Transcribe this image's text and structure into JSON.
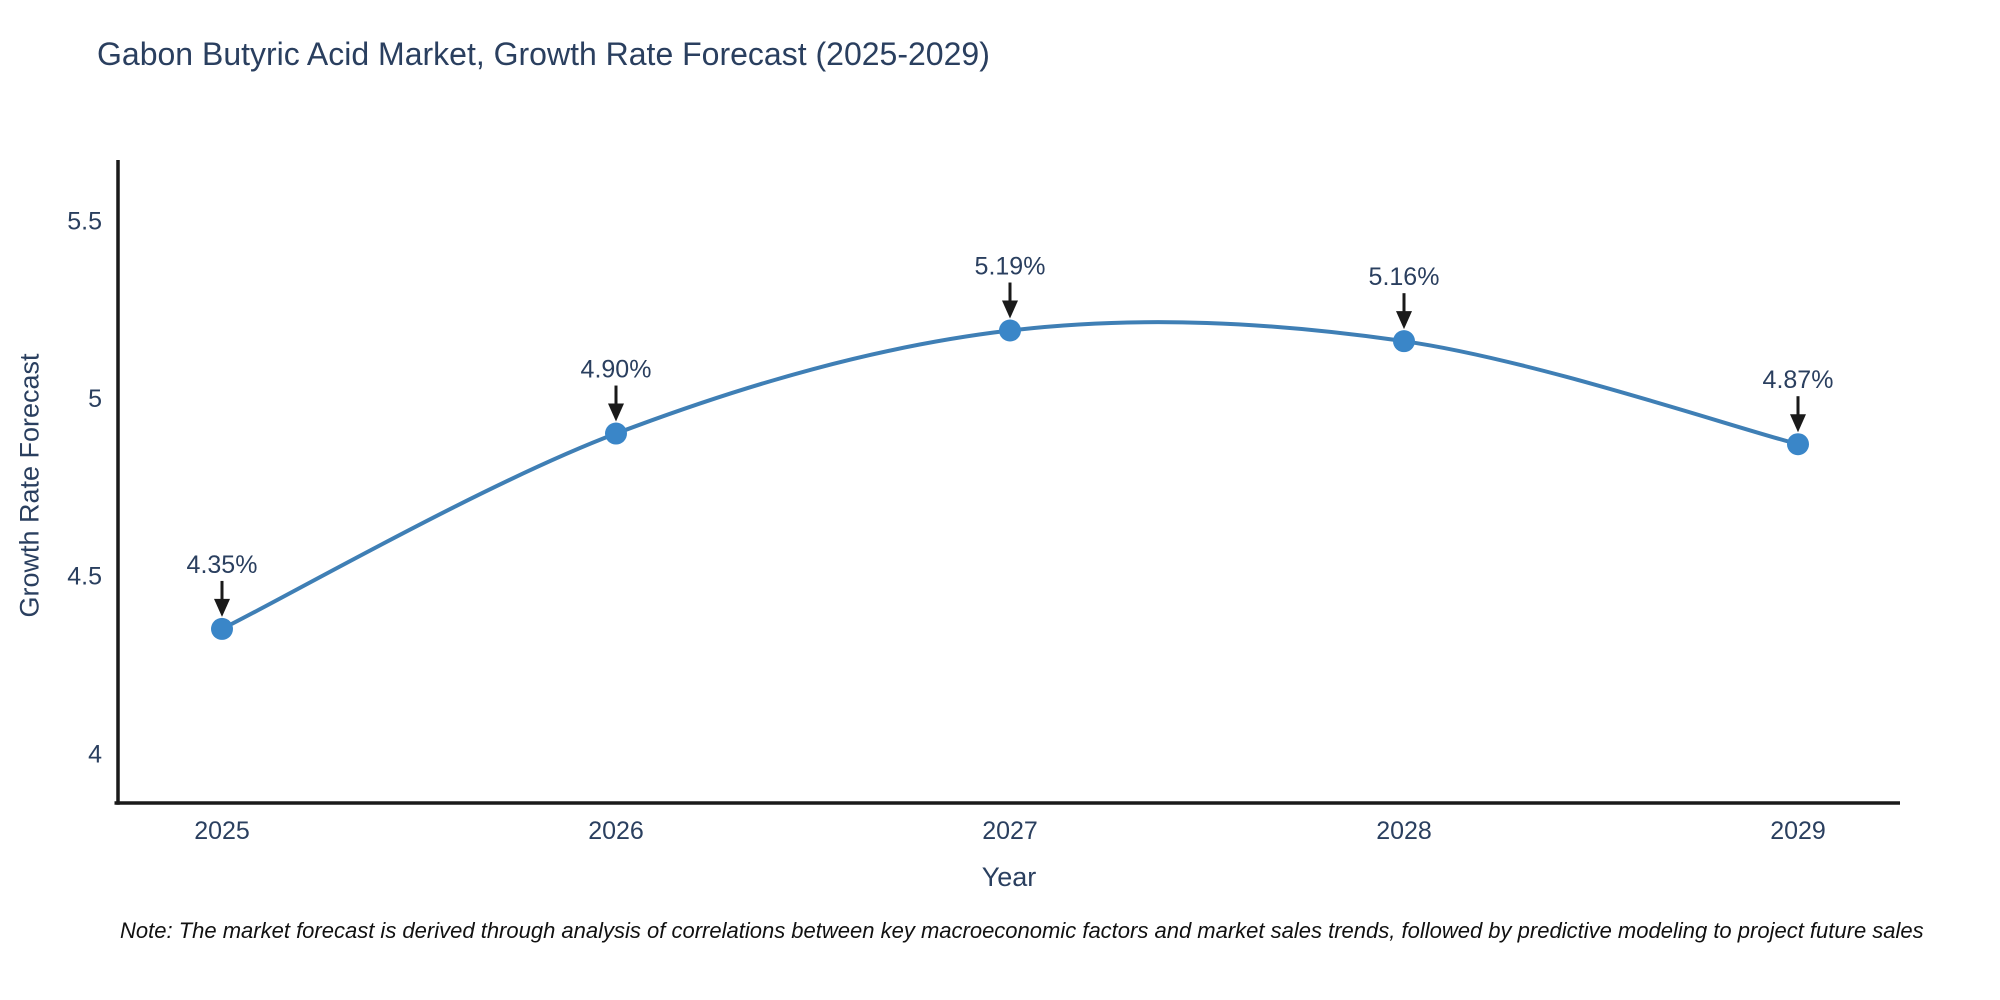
{
  "title": "Gabon Butyric Acid Market, Growth Rate Forecast (2025-2029)",
  "note": "Note: The market forecast is derived through analysis of correlations between key macroeconomic factors and market sales trends, followed by predictive modeling to project future sales",
  "chart_data": {
    "type": "line",
    "line_shape": "spline",
    "title": "Gabon Butyric Acid Market, Growth Rate Forecast (2025-2029)",
    "categories": [
      "2025",
      "2026",
      "2027",
      "2028",
      "2029"
    ],
    "values": [
      4.35,
      4.9,
      5.19,
      5.16,
      4.87
    ],
    "point_labels": [
      "4.35%",
      "4.90%",
      "5.19%",
      "5.16%",
      "4.87%"
    ],
    "series_name": "Growth Rate Forecast",
    "xlabel": "Year",
    "ylabel": "Growth Rate Forecast",
    "yticks": [
      4,
      4.5,
      5,
      5.5
    ],
    "ylim": [
      3.86,
      5.67
    ],
    "grid": false,
    "legend": "none",
    "markers": true,
    "annotations": "arrow-above-each-point",
    "colors": {
      "line": "#3f7fb5",
      "marker": "#3a86c8",
      "text": "#2a3f5f",
      "axis": "#1a1a1a",
      "arrow": "#1a1a1a",
      "background": "#ffffff"
    }
  }
}
